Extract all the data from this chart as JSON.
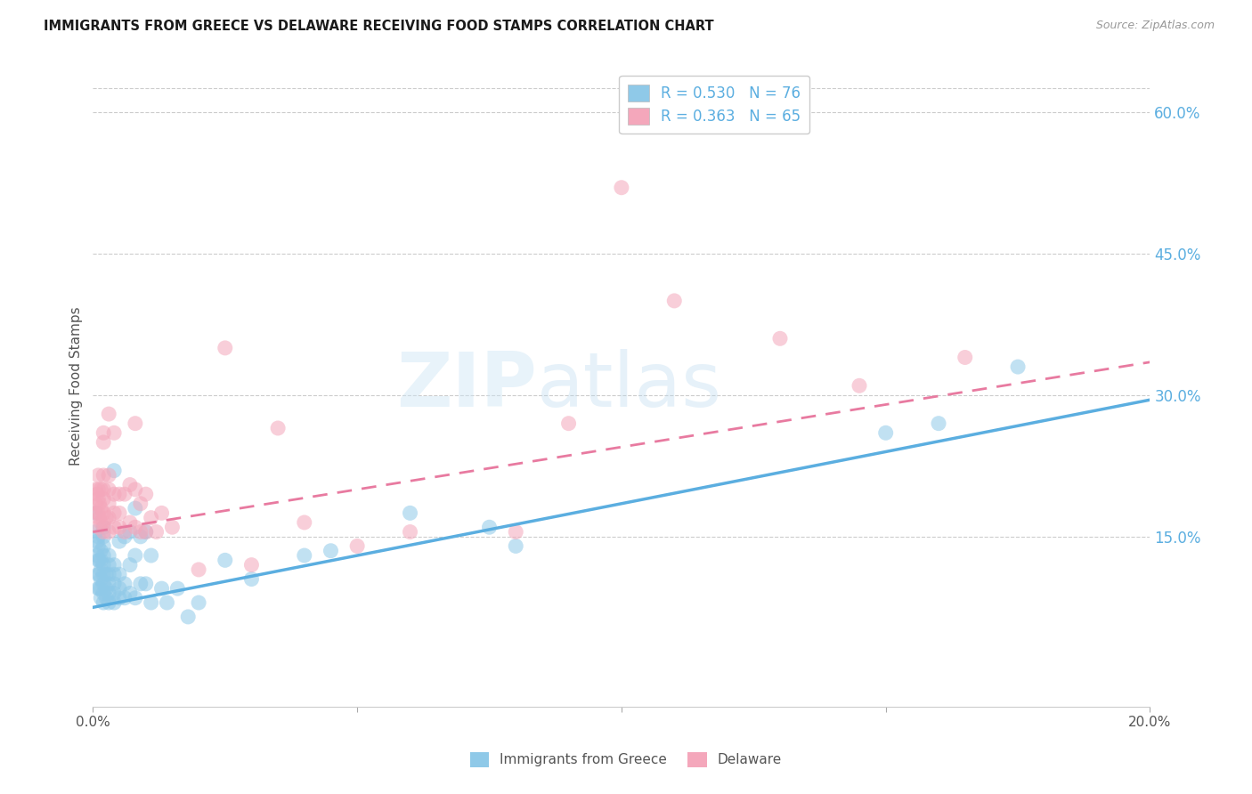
{
  "title": "IMMIGRANTS FROM GREECE VS DELAWARE RECEIVING FOOD STAMPS CORRELATION CHART",
  "source": "Source: ZipAtlas.com",
  "ylabel": "Receiving Food Stamps",
  "yticks": [
    "60.0%",
    "45.0%",
    "30.0%",
    "15.0%"
  ],
  "ytick_vals": [
    0.6,
    0.45,
    0.3,
    0.15
  ],
  "xmin": 0.0,
  "xmax": 0.2,
  "ymin": -0.03,
  "ymax": 0.65,
  "color_blue": "#8fc9e8",
  "color_pink": "#f4a7bb",
  "color_blue_line": "#5baee0",
  "color_pink_line": "#e87aa0",
  "watermark_zip": "ZIP",
  "watermark_atlas": "atlas",
  "greece_R": 0.53,
  "greece_N": 76,
  "delaware_R": 0.363,
  "delaware_N": 65,
  "greece_line_x0": 0.0,
  "greece_line_y0": 0.075,
  "greece_line_x1": 0.2,
  "greece_line_y1": 0.295,
  "delaware_line_x0": 0.0,
  "delaware_line_y0": 0.155,
  "delaware_line_x1": 0.2,
  "delaware_line_y1": 0.335,
  "greece_x": [
    0.0005,
    0.0005,
    0.0008,
    0.0008,
    0.001,
    0.001,
    0.001,
    0.001,
    0.001,
    0.0012,
    0.0012,
    0.0012,
    0.0015,
    0.0015,
    0.0015,
    0.0015,
    0.0015,
    0.0015,
    0.002,
    0.002,
    0.002,
    0.002,
    0.002,
    0.002,
    0.002,
    0.002,
    0.002,
    0.0025,
    0.0025,
    0.0025,
    0.003,
    0.003,
    0.003,
    0.003,
    0.003,
    0.003,
    0.004,
    0.004,
    0.004,
    0.004,
    0.004,
    0.004,
    0.005,
    0.005,
    0.005,
    0.005,
    0.006,
    0.006,
    0.006,
    0.007,
    0.007,
    0.007,
    0.008,
    0.008,
    0.008,
    0.009,
    0.009,
    0.01,
    0.01,
    0.011,
    0.011,
    0.013,
    0.014,
    0.016,
    0.018,
    0.02,
    0.025,
    0.03,
    0.04,
    0.045,
    0.06,
    0.075,
    0.08,
    0.15,
    0.16,
    0.175
  ],
  "greece_y": [
    0.175,
    0.155,
    0.145,
    0.13,
    0.095,
    0.11,
    0.125,
    0.14,
    0.15,
    0.095,
    0.11,
    0.125,
    0.085,
    0.095,
    0.105,
    0.115,
    0.125,
    0.135,
    0.08,
    0.09,
    0.1,
    0.11,
    0.12,
    0.13,
    0.14,
    0.15,
    0.16,
    0.085,
    0.095,
    0.11,
    0.08,
    0.09,
    0.1,
    0.11,
    0.12,
    0.13,
    0.08,
    0.09,
    0.1,
    0.11,
    0.12,
    0.22,
    0.085,
    0.095,
    0.11,
    0.145,
    0.085,
    0.1,
    0.15,
    0.09,
    0.12,
    0.155,
    0.085,
    0.13,
    0.18,
    0.1,
    0.15,
    0.1,
    0.155,
    0.08,
    0.13,
    0.095,
    0.08,
    0.095,
    0.065,
    0.08,
    0.125,
    0.105,
    0.13,
    0.135,
    0.175,
    0.16,
    0.14,
    0.26,
    0.27,
    0.33
  ],
  "delaware_x": [
    0.0005,
    0.0005,
    0.0008,
    0.0008,
    0.001,
    0.001,
    0.001,
    0.001,
    0.001,
    0.0012,
    0.0012,
    0.0015,
    0.0015,
    0.0015,
    0.002,
    0.002,
    0.002,
    0.002,
    0.002,
    0.002,
    0.002,
    0.002,
    0.0025,
    0.003,
    0.003,
    0.003,
    0.003,
    0.003,
    0.003,
    0.004,
    0.004,
    0.004,
    0.004,
    0.005,
    0.005,
    0.005,
    0.006,
    0.006,
    0.007,
    0.007,
    0.008,
    0.008,
    0.008,
    0.009,
    0.009,
    0.01,
    0.01,
    0.011,
    0.012,
    0.013,
    0.015,
    0.02,
    0.025,
    0.03,
    0.035,
    0.04,
    0.05,
    0.06,
    0.08,
    0.09,
    0.1,
    0.11,
    0.13,
    0.145,
    0.165
  ],
  "delaware_y": [
    0.2,
    0.185,
    0.195,
    0.175,
    0.16,
    0.175,
    0.19,
    0.2,
    0.215,
    0.17,
    0.185,
    0.165,
    0.18,
    0.2,
    0.155,
    0.165,
    0.175,
    0.19,
    0.2,
    0.215,
    0.25,
    0.26,
    0.17,
    0.155,
    0.17,
    0.185,
    0.2,
    0.215,
    0.28,
    0.16,
    0.175,
    0.195,
    0.26,
    0.16,
    0.175,
    0.195,
    0.155,
    0.195,
    0.165,
    0.205,
    0.16,
    0.2,
    0.27,
    0.155,
    0.185,
    0.155,
    0.195,
    0.17,
    0.155,
    0.175,
    0.16,
    0.115,
    0.35,
    0.12,
    0.265,
    0.165,
    0.14,
    0.155,
    0.155,
    0.27,
    0.52,
    0.4,
    0.36,
    0.31,
    0.34
  ]
}
